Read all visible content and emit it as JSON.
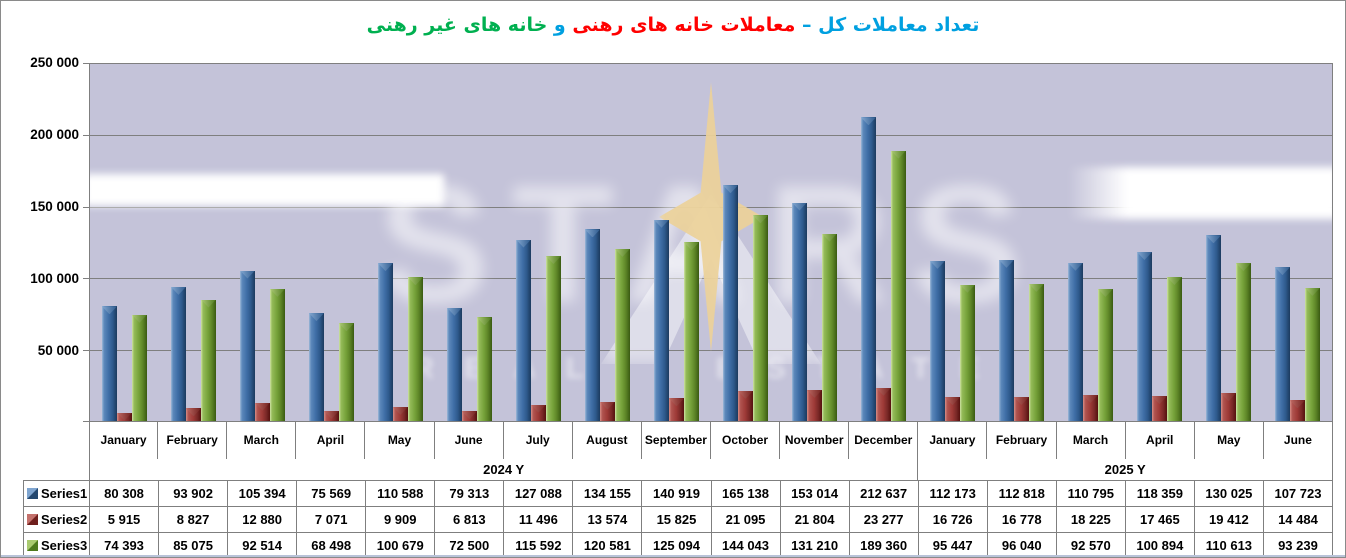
{
  "title": {
    "part_total": "تعداد معاملات کل",
    "dash": "–",
    "part_mortgaged": "معاملات خانه های رهنی",
    "conjunction": "و",
    "part_non_mortgaged": "خانه های غیر رهنی",
    "color_total": "#00A0E0",
    "color_mortgaged": "#FF0000",
    "color_non_mortgaged": "#00B050"
  },
  "y_axis": {
    "ticks": [
      "250 000",
      "200 000",
      "150 000",
      "100 000",
      "50 000"
    ]
  },
  "x_axis": {
    "year_groups": [
      {
        "label": "2024  Y",
        "months_span": 12
      },
      {
        "label": "2025  Y",
        "months_span": 6
      }
    ]
  },
  "watermark": {
    "brand": "STARS",
    "tagline": "REAL ESTATE",
    "star_color": "#ECD29A"
  },
  "chart_data": {
    "type": "bar",
    "title": "تعداد معاملات کل – معاملات خانه های رهنی و خانه های غیر رهنی",
    "categories": [
      "January",
      "February",
      "March",
      "April",
      "May",
      "June",
      "July",
      "August",
      "September",
      "October",
      "November",
      "December",
      "January",
      "February",
      "March",
      "April",
      "May",
      "June"
    ],
    "category_years": [
      2024,
      2024,
      2024,
      2024,
      2024,
      2024,
      2024,
      2024,
      2024,
      2024,
      2024,
      2024,
      2025,
      2025,
      2025,
      2025,
      2025,
      2025
    ],
    "series": [
      {
        "name": "Series1",
        "color": "#4F81BD",
        "values": [
          80308,
          93902,
          105394,
          75569,
          110588,
          79313,
          127088,
          134155,
          140919,
          165138,
          153014,
          212637,
          112173,
          112818,
          110795,
          118359,
          130025,
          107723
        ]
      },
      {
        "name": "Series2",
        "color": "#9E3A37",
        "values": [
          5915,
          8827,
          12880,
          7071,
          9909,
          6813,
          11496,
          13574,
          15825,
          21095,
          21804,
          23277,
          16726,
          16778,
          18225,
          17465,
          19412,
          14484
        ]
      },
      {
        "name": "Series3",
        "color": "#76A23A",
        "values": [
          74393,
          85075,
          92514,
          68498,
          100679,
          72500,
          115592,
          120581,
          125094,
          144043,
          131210,
          189360,
          95447,
          96040,
          92570,
          100894,
          110613,
          93239
        ]
      }
    ],
    "ylim": [
      0,
      250000
    ],
    "ytick_step": 50000,
    "grid": true,
    "legend_position": "table-left",
    "number_format": "space-thousands",
    "plot_background": "#C4C3D9"
  }
}
